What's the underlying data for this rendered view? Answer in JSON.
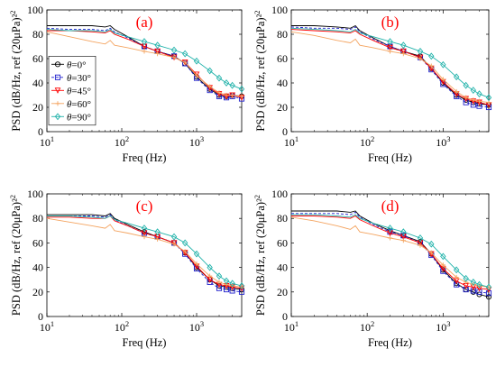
{
  "chart_data": [
    {
      "type": "line",
      "panel_label": "(a)",
      "xlabel": "Freq (Hz)",
      "ylabel": "PSD (dB/Hz, ref (20μPa)²)",
      "x_scale": "log",
      "xlim": [
        10,
        4000
      ],
      "ylim": [
        0,
        100
      ],
      "x_ticks": [
        10,
        100,
        1000
      ],
      "x_tick_labels": [
        "10¹",
        "10²",
        "10³"
      ],
      "y_ticks": [
        0,
        20,
        40,
        60,
        80,
        100
      ],
      "legend": true,
      "legend_position": "left",
      "series": [
        {
          "name": "θ=0°",
          "color": "#000000",
          "marker": "circle",
          "dash": "solid",
          "x": [
            10,
            20,
            40,
            60,
            70,
            80,
            120,
            200,
            300,
            500,
            700,
            1000,
            1500,
            2000,
            2500,
            3000,
            4000
          ],
          "y": [
            87,
            87,
            87,
            86,
            87,
            84,
            78,
            70,
            66,
            62,
            56,
            45,
            35,
            30,
            29,
            30,
            29
          ]
        },
        {
          "name": "θ=30°",
          "color": "#1f1fcc",
          "marker": "square",
          "dash": "dash",
          "x": [
            10,
            20,
            40,
            60,
            70,
            80,
            120,
            200,
            300,
            500,
            700,
            1000,
            1500,
            2000,
            2500,
            3000,
            4000
          ],
          "y": [
            85,
            84,
            84,
            83,
            85,
            82,
            77,
            70,
            66,
            62,
            56,
            44,
            34,
            29,
            28,
            29,
            27
          ]
        },
        {
          "name": "θ=45°",
          "color": "#ff0000",
          "marker": "triangle-down",
          "dash": "solid",
          "x": [
            10,
            20,
            40,
            60,
            70,
            80,
            120,
            200,
            300,
            500,
            700,
            1000,
            1500,
            2000,
            2500,
            3000,
            4000
          ],
          "y": [
            83,
            83,
            82,
            81,
            83,
            80,
            76,
            70,
            66,
            61,
            57,
            47,
            36,
            31,
            29,
            30,
            28
          ]
        },
        {
          "name": "θ=60°",
          "color": "#f4a460",
          "marker": "plus",
          "dash": "solid",
          "x": [
            10,
            20,
            40,
            60,
            70,
            80,
            120,
            200,
            300,
            500,
            700,
            1000,
            1500,
            2000,
            2500,
            3000,
            4000
          ],
          "y": [
            82,
            78,
            74,
            72,
            75,
            71,
            69,
            66,
            64,
            61,
            57,
            46,
            37,
            32,
            30,
            30,
            29
          ]
        },
        {
          "name": "θ=90°",
          "color": "#20b2aa",
          "marker": "diamond",
          "dash": "solid",
          "x": [
            10,
            20,
            40,
            60,
            70,
            80,
            120,
            200,
            300,
            500,
            700,
            1000,
            1500,
            2000,
            2500,
            3000,
            4000
          ],
          "y": [
            84,
            83,
            83,
            82,
            84,
            81,
            78,
            74,
            71,
            67,
            64,
            58,
            50,
            44,
            40,
            38,
            35
          ]
        }
      ]
    },
    {
      "type": "line",
      "panel_label": "(b)",
      "xlabel": "Freq (Hz)",
      "ylabel": "PSD (dB/Hz, ref (20μPa)²)",
      "x_scale": "log",
      "xlim": [
        10,
        4000
      ],
      "ylim": [
        0,
        100
      ],
      "x_ticks": [
        10,
        100,
        1000
      ],
      "x_tick_labels": [
        "10¹",
        "10²",
        "10³"
      ],
      "y_ticks": [
        0,
        20,
        40,
        60,
        80,
        100
      ],
      "legend": false,
      "series": [
        {
          "name": "θ=0°",
          "color": "#000000",
          "marker": "circle",
          "dash": "solid",
          "x": [
            10,
            20,
            40,
            60,
            70,
            80,
            120,
            200,
            300,
            500,
            700,
            1000,
            1500,
            2000,
            2500,
            3000,
            4000
          ],
          "y": [
            87,
            87,
            86,
            85,
            87,
            83,
            77,
            70,
            66,
            62,
            52,
            40,
            30,
            26,
            24,
            23,
            22
          ]
        },
        {
          "name": "θ=30°",
          "color": "#1f1fcc",
          "marker": "square",
          "dash": "dash",
          "x": [
            10,
            20,
            40,
            60,
            70,
            80,
            120,
            200,
            300,
            500,
            700,
            1000,
            1500,
            2000,
            2500,
            3000,
            4000
          ],
          "y": [
            86,
            85,
            85,
            84,
            86,
            82,
            76,
            70,
            66,
            61,
            51,
            39,
            29,
            24,
            22,
            21,
            20
          ]
        },
        {
          "name": "θ=45°",
          "color": "#ff0000",
          "marker": "triangle-down",
          "dash": "solid",
          "x": [
            10,
            20,
            40,
            60,
            70,
            80,
            120,
            200,
            300,
            500,
            700,
            1000,
            1500,
            2000,
            2500,
            3000,
            4000
          ],
          "y": [
            84,
            83,
            82,
            81,
            83,
            80,
            75,
            69,
            66,
            61,
            52,
            41,
            31,
            27,
            25,
            24,
            22
          ]
        },
        {
          "name": "θ=60°",
          "color": "#f4a460",
          "marker": "plus",
          "dash": "solid",
          "x": [
            10,
            20,
            40,
            60,
            70,
            80,
            120,
            200,
            300,
            500,
            700,
            1000,
            1500,
            2000,
            2500,
            3000,
            4000
          ],
          "y": [
            82,
            79,
            75,
            73,
            76,
            71,
            69,
            66,
            64,
            60,
            54,
            43,
            33,
            28,
            26,
            25,
            24
          ]
        },
        {
          "name": "θ=90°",
          "color": "#20b2aa",
          "marker": "diamond",
          "dash": "solid",
          "x": [
            10,
            20,
            40,
            60,
            70,
            80,
            120,
            200,
            300,
            500,
            700,
            1000,
            1500,
            2000,
            2500,
            3000,
            4000
          ],
          "y": [
            85,
            84,
            83,
            82,
            84,
            81,
            78,
            74,
            71,
            66,
            62,
            55,
            45,
            38,
            34,
            31,
            28
          ]
        }
      ]
    },
    {
      "type": "line",
      "panel_label": "(c)",
      "xlabel": "Freq (Hz)",
      "ylabel": "PSD (dB/Hz, ref (20μPa)²)",
      "x_scale": "log",
      "xlim": [
        10,
        4000
      ],
      "ylim": [
        0,
        100
      ],
      "x_ticks": [
        10,
        100,
        1000
      ],
      "x_tick_labels": [
        "10¹",
        "10²",
        "10³"
      ],
      "y_ticks": [
        0,
        20,
        40,
        60,
        80,
        100
      ],
      "legend": false,
      "series": [
        {
          "name": "θ=0°",
          "color": "#000000",
          "marker": "circle",
          "dash": "solid",
          "x": [
            10,
            20,
            40,
            60,
            70,
            80,
            120,
            200,
            300,
            500,
            700,
            1000,
            1500,
            2000,
            2500,
            3000,
            4000
          ],
          "y": [
            83,
            83,
            83,
            82,
            84,
            80,
            75,
            69,
            65,
            60,
            52,
            40,
            30,
            25,
            24,
            23,
            22
          ]
        },
        {
          "name": "θ=30°",
          "color": "#1f1fcc",
          "marker": "square",
          "dash": "dash",
          "x": [
            10,
            20,
            40,
            60,
            70,
            80,
            120,
            200,
            300,
            500,
            700,
            1000,
            1500,
            2000,
            2500,
            3000,
            4000
          ],
          "y": [
            82,
            82,
            82,
            81,
            83,
            79,
            74,
            68,
            65,
            60,
            51,
            39,
            28,
            23,
            22,
            21,
            20
          ]
        },
        {
          "name": "θ=45°",
          "color": "#ff0000",
          "marker": "triangle-down",
          "dash": "solid",
          "x": [
            10,
            20,
            40,
            60,
            70,
            80,
            120,
            200,
            300,
            500,
            700,
            1000,
            1500,
            2000,
            2500,
            3000,
            4000
          ],
          "y": [
            81,
            81,
            80,
            80,
            82,
            78,
            74,
            68,
            65,
            60,
            52,
            41,
            30,
            26,
            25,
            24,
            23
          ]
        },
        {
          "name": "θ=60°",
          "color": "#f4a460",
          "marker": "plus",
          "dash": "solid",
          "x": [
            10,
            20,
            40,
            60,
            70,
            80,
            120,
            200,
            300,
            500,
            700,
            1000,
            1500,
            2000,
            2500,
            3000,
            4000
          ],
          "y": [
            80,
            77,
            74,
            72,
            75,
            70,
            68,
            65,
            63,
            59,
            53,
            43,
            33,
            28,
            26,
            25,
            24
          ]
        },
        {
          "name": "θ=90°",
          "color": "#20b2aa",
          "marker": "diamond",
          "dash": "solid",
          "x": [
            10,
            20,
            40,
            60,
            70,
            80,
            120,
            200,
            300,
            500,
            700,
            1000,
            1500,
            2000,
            2500,
            3000,
            4000
          ],
          "y": [
            82,
            82,
            81,
            80,
            82,
            79,
            76,
            72,
            69,
            65,
            60,
            51,
            40,
            33,
            29,
            27,
            25
          ]
        }
      ]
    },
    {
      "type": "line",
      "panel_label": "(d)",
      "xlabel": "Freq (Hz)",
      "ylabel": "PSD (dB/Hz, ref (20μPa)²)",
      "x_scale": "log",
      "xlim": [
        10,
        4000
      ],
      "ylim": [
        0,
        100
      ],
      "x_ticks": [
        10,
        100,
        1000
      ],
      "x_tick_labels": [
        "10¹",
        "10²",
        "10³"
      ],
      "y_ticks": [
        0,
        20,
        40,
        60,
        80,
        100
      ],
      "legend": false,
      "series": [
        {
          "name": "θ=0°",
          "color": "#000000",
          "marker": "circle",
          "dash": "solid",
          "x": [
            10,
            20,
            40,
            60,
            70,
            80,
            120,
            200,
            300,
            500,
            700,
            1000,
            1500,
            2000,
            2500,
            3000,
            4000
          ],
          "y": [
            86,
            86,
            86,
            85,
            86,
            82,
            76,
            70,
            66,
            61,
            51,
            38,
            27,
            22,
            20,
            18,
            16
          ]
        },
        {
          "name": "θ=30°",
          "color": "#1f1fcc",
          "marker": "square",
          "dash": "dash",
          "x": [
            10,
            20,
            40,
            60,
            70,
            80,
            120,
            200,
            300,
            500,
            700,
            1000,
            1500,
            2000,
            2500,
            3000,
            4000
          ],
          "y": [
            84,
            84,
            84,
            83,
            85,
            81,
            75,
            69,
            66,
            60,
            50,
            37,
            26,
            22,
            21,
            20,
            19
          ]
        },
        {
          "name": "θ=45°",
          "color": "#ff0000",
          "marker": "triangle-down",
          "dash": "solid",
          "x": [
            10,
            20,
            40,
            60,
            70,
            80,
            120,
            200,
            300,
            500,
            700,
            1000,
            1500,
            2000,
            2500,
            3000,
            4000
          ],
          "y": [
            82,
            82,
            81,
            80,
            82,
            79,
            74,
            68,
            65,
            60,
            51,
            39,
            29,
            25,
            24,
            23,
            22
          ]
        },
        {
          "name": "θ=60°",
          "color": "#f4a460",
          "marker": "plus",
          "dash": "solid",
          "x": [
            10,
            20,
            40,
            60,
            70,
            80,
            120,
            200,
            300,
            500,
            700,
            1000,
            1500,
            2000,
            2500,
            3000,
            4000
          ],
          "y": [
            81,
            78,
            74,
            71,
            74,
            69,
            67,
            64,
            62,
            58,
            52,
            42,
            32,
            28,
            26,
            25,
            24
          ]
        },
        {
          "name": "θ=90°",
          "color": "#20b2aa",
          "marker": "diamond",
          "dash": "solid",
          "x": [
            10,
            20,
            40,
            60,
            70,
            80,
            120,
            200,
            300,
            500,
            700,
            1000,
            1500,
            2000,
            2500,
            3000,
            4000
          ],
          "y": [
            83,
            83,
            82,
            81,
            83,
            80,
            76,
            72,
            69,
            64,
            59,
            49,
            38,
            31,
            28,
            26,
            24
          ]
        }
      ]
    }
  ]
}
